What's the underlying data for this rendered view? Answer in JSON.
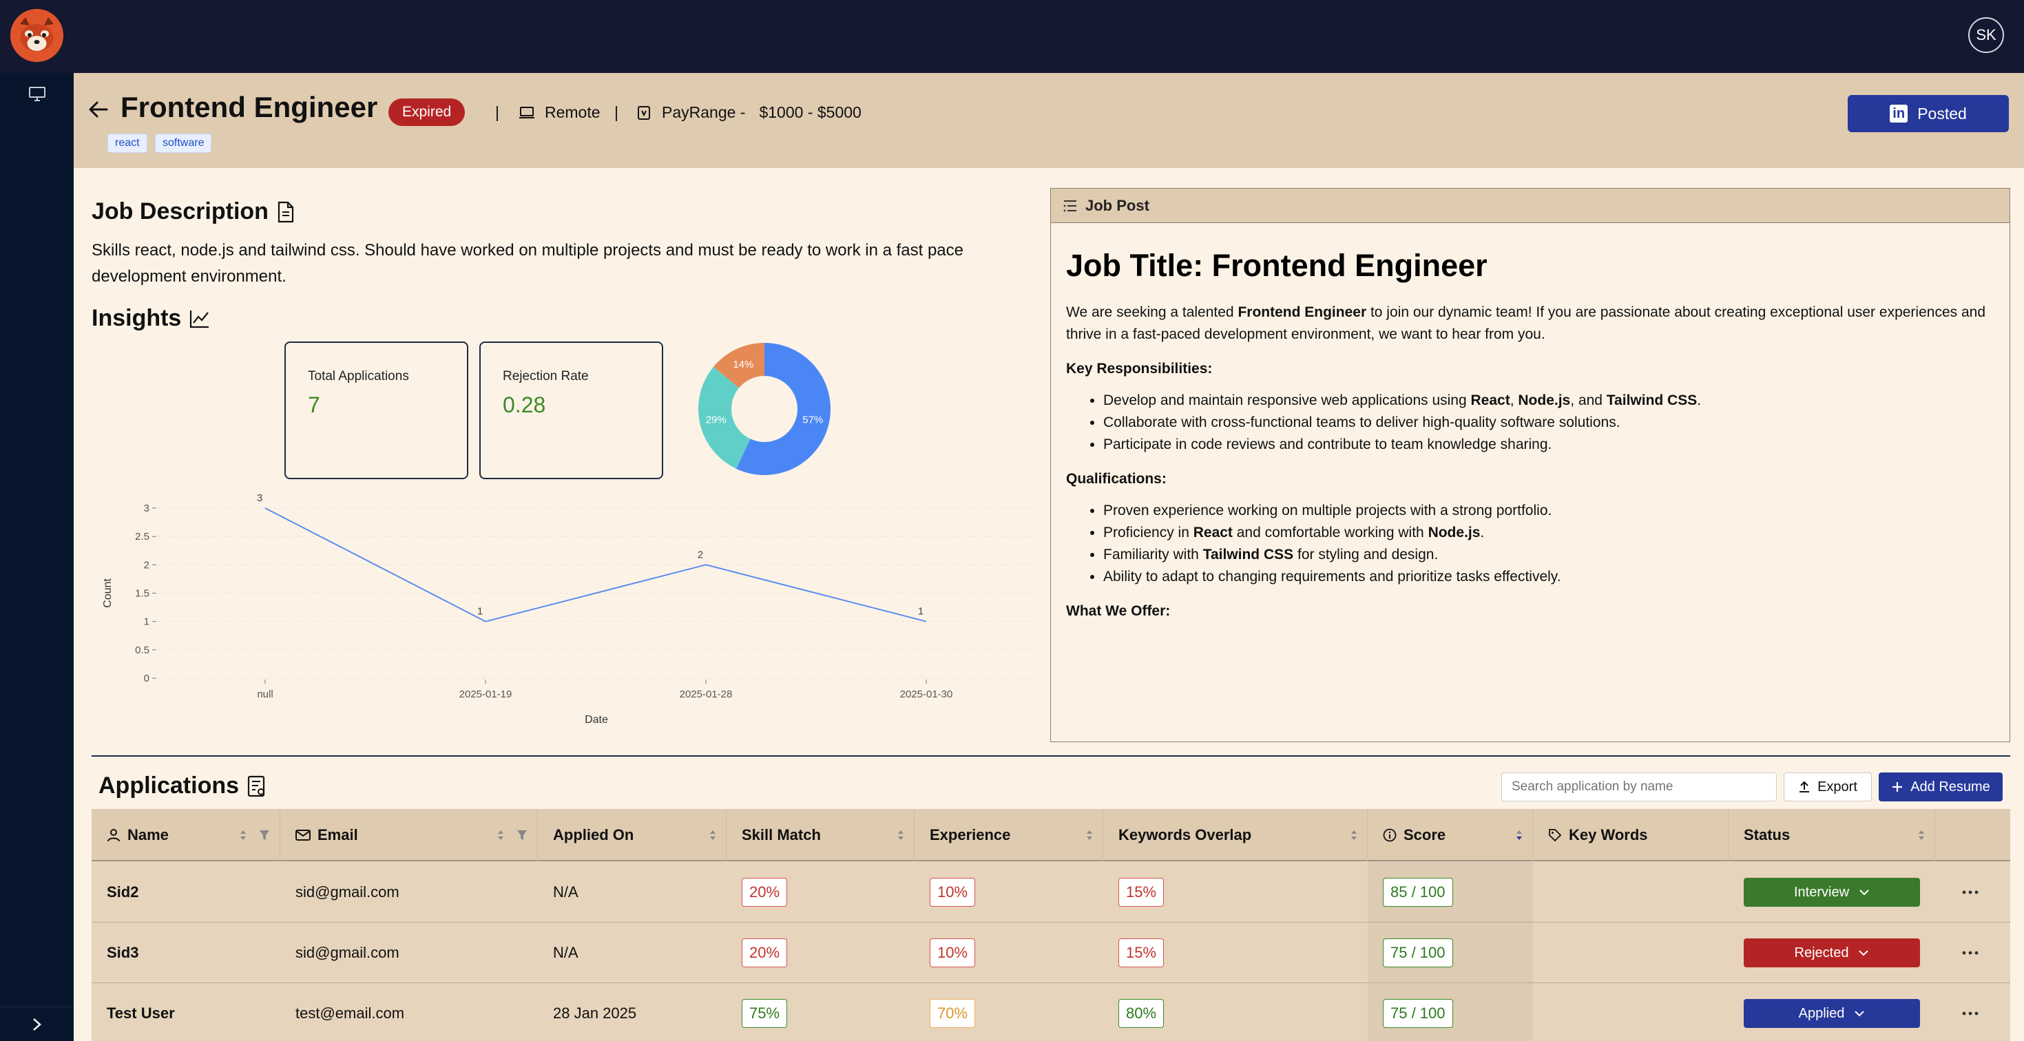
{
  "user": {
    "initials": "SK"
  },
  "job": {
    "title": "Frontend Engineer",
    "status_badge": "Expired",
    "separator": "|",
    "location": "Remote",
    "pay_label": "PayRange -",
    "pay_value": "$1000 - $5000",
    "tags": [
      "react",
      "software"
    ],
    "posted_label": "Posted"
  },
  "description": {
    "heading": "Job Description",
    "text": "Skills react, node.js and tailwind css. Should have worked on multiple projects and must be ready to work in a fast pace development environment."
  },
  "insights": {
    "heading": "Insights",
    "total_applications_label": "Total Applications",
    "total_applications_value": "7",
    "rejection_rate_label": "Rejection Rate",
    "rejection_rate_value": "0.28"
  },
  "chart_data": [
    {
      "type": "pie",
      "style": "donut",
      "slices": [
        {
          "label": "57%",
          "value": 57,
          "color": "#4b86f5"
        },
        {
          "label": "29%",
          "value": 29,
          "color": "#5fcfc8"
        },
        {
          "label": "14%",
          "value": 14,
          "color": "#e58a55"
        }
      ]
    },
    {
      "type": "line",
      "categories": [
        "null",
        "2025-01-19",
        "2025-01-28",
        "2025-01-30"
      ],
      "values": [
        3,
        1,
        2,
        1
      ],
      "data_labels": [
        "3",
        "1",
        "2",
        "1"
      ],
      "xlabel": "Date",
      "ylabel": "Count",
      "ylim": [
        0,
        3
      ],
      "yticks": [
        "0",
        "0.5",
        "1",
        "1.5",
        "2",
        "2.5",
        "3"
      ],
      "color": "#5b8def",
      "grid": true
    }
  ],
  "job_post": {
    "panel_title": "Job Post",
    "title": "Job Title: Frontend Engineer",
    "intro_1": "We are seeking a talented ",
    "intro_bold": "Frontend Engineer",
    "intro_2": " to join our dynamic team! If you are passionate about creating exceptional user experiences and thrive in a fast-paced development environment, we want to hear from you.",
    "responsibilities_heading": "Key Responsibilities:",
    "resp_1a": "Develop and maintain responsive web applications using ",
    "resp_1b": "React",
    "resp_1c": ", ",
    "resp_1d": "Node.js",
    "resp_1e": ", and ",
    "resp_1f": "Tailwind CSS",
    "resp_1g": ".",
    "resp_2": "Collaborate with cross-functional teams to deliver high-quality software solutions.",
    "resp_3": "Participate in code reviews and contribute to team knowledge sharing.",
    "qualifications_heading": "Qualifications:",
    "qual_1": "Proven experience working on multiple projects with a strong portfolio.",
    "qual_2a": "Proficiency in ",
    "qual_2b": "React",
    "qual_2c": " and comfortable working with ",
    "qual_2d": "Node.js",
    "qual_2e": ".",
    "qual_3a": "Familiarity with ",
    "qual_3b": "Tailwind CSS",
    "qual_3c": " for styling and design.",
    "qual_4": "Ability to adapt to changing requirements and prioritize tasks effectively.",
    "offer_heading": "What We Offer:"
  },
  "applications": {
    "heading": "Applications",
    "search_placeholder": "Search application by name",
    "export_label": "Export",
    "add_label": "Add Resume",
    "columns": [
      "Name",
      "Email",
      "Applied On",
      "Skill Match",
      "Experience",
      "Keywords Overlap",
      "Score",
      "Key Words",
      "Status"
    ],
    "rows": [
      {
        "name": "Sid2",
        "email": "sid@gmail.com",
        "applied_on": "N/A",
        "skill_match": "20%",
        "experience": "10%",
        "keywords_overlap": "15%",
        "score": "85 / 100",
        "status": "Interview",
        "status_color": "#3a7a2c"
      },
      {
        "name": "Sid3",
        "email": "sid@gmail.com",
        "applied_on": "N/A",
        "skill_match": "20%",
        "experience": "10%",
        "keywords_overlap": "15%",
        "score": "75 / 100",
        "status": "Rejected",
        "status_color": "#b52424"
      },
      {
        "name": "Test User",
        "email": "test@email.com",
        "applied_on": "28 Jan 2025",
        "skill_match": "75%",
        "experience": "70%",
        "keywords_overlap": "80%",
        "score": "75 / 100",
        "status": "Applied",
        "status_color": "#26389a"
      }
    ]
  }
}
